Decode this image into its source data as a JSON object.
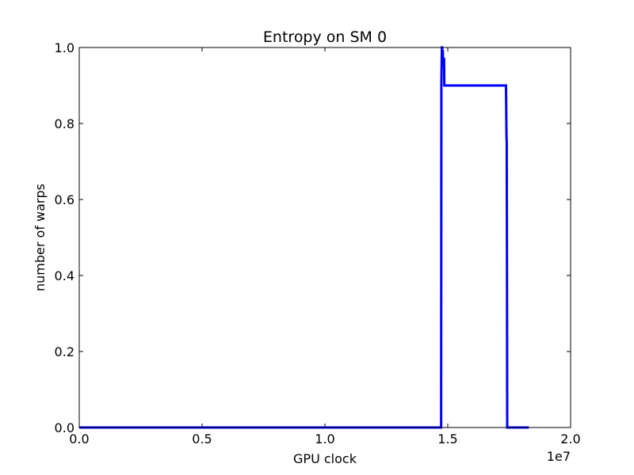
{
  "chart_data": {
    "type": "line",
    "title": "Entropy on SM 0",
    "xlabel": "GPU clock",
    "ylabel": "number of warps",
    "x_offset_label": "1e7",
    "xlim": [
      0,
      20000000
    ],
    "ylim": [
      0,
      1.0
    ],
    "x_ticks": [
      0,
      5000000,
      10000000,
      15000000,
      20000000
    ],
    "x_tick_labels": [
      "0.0",
      "0.5",
      "1.0",
      "1.5",
      "2.0"
    ],
    "y_ticks": [
      0,
      0.2,
      0.4,
      0.6,
      0.8,
      1.0
    ],
    "y_tick_labels": [
      "0.0",
      "0.2",
      "0.4",
      "0.6",
      "0.8",
      "1.0"
    ],
    "grid": false,
    "series": [
      {
        "color": "#0000ff",
        "x": [
          0,
          14730000,
          14740000,
          14760000,
          14770000,
          14780000,
          14800000,
          14810000,
          14830000,
          14850000,
          14860000,
          14870000,
          17370000,
          17380000,
          17390000,
          17400000,
          17410000,
          17420000,
          17430000,
          17450000,
          18300000
        ],
        "y": [
          0,
          0,
          0.9,
          1.0,
          1.0,
          0.99,
          0.99,
          0.95,
          0.97,
          0.97,
          0.9,
          0.9,
          0.9,
          0.84,
          0.77,
          0.75,
          0.42,
          0.0,
          0.0,
          0.0,
          0.0
        ]
      }
    ]
  }
}
